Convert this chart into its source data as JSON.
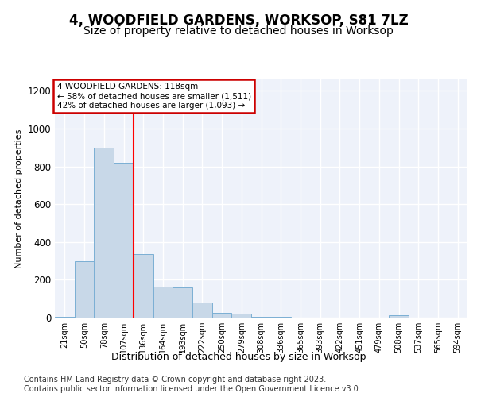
{
  "title": "4, WOODFIELD GARDENS, WORKSOP, S81 7LZ",
  "subtitle": "Size of property relative to detached houses in Worksop",
  "xlabel": "Distribution of detached houses by size in Worksop",
  "ylabel": "Number of detached properties",
  "categories": [
    "21sqm",
    "50sqm",
    "78sqm",
    "107sqm",
    "136sqm",
    "164sqm",
    "193sqm",
    "222sqm",
    "250sqm",
    "279sqm",
    "308sqm",
    "336sqm",
    "365sqm",
    "393sqm",
    "422sqm",
    "451sqm",
    "479sqm",
    "508sqm",
    "537sqm",
    "565sqm",
    "594sqm"
  ],
  "values": [
    5,
    300,
    900,
    820,
    335,
    165,
    160,
    80,
    25,
    20,
    4,
    3,
    2,
    1,
    1,
    1,
    1,
    12,
    1,
    1,
    1
  ],
  "bar_color": "#c8d8e8",
  "bar_edge_color": "#7bafd4",
  "red_line_x": 3.5,
  "annotation_text": "4 WOODFIELD GARDENS: 118sqm\n← 58% of detached houses are smaller (1,511)\n42% of detached houses are larger (1,093) →",
  "annotation_box_color": "#ffffff",
  "annotation_box_edge": "#cc0000",
  "footer": "Contains HM Land Registry data © Crown copyright and database right 2023.\nContains public sector information licensed under the Open Government Licence v3.0.",
  "ylim": [
    0,
    1260
  ],
  "yticks": [
    0,
    200,
    400,
    600,
    800,
    1000,
    1200
  ],
  "background_color": "#eef2fa",
  "grid_color": "#ffffff",
  "title_fontsize": 12,
  "subtitle_fontsize": 10,
  "footer_fontsize": 7.0
}
